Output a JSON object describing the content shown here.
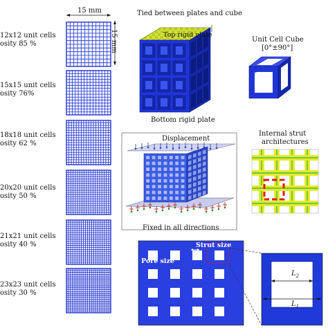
{
  "dimension_width": "15 mm",
  "dimension_height": "15 mm",
  "samples": [
    {
      "cells": "12x12 unit cells",
      "porosity": "osity 85 %",
      "n": 12
    },
    {
      "cells": "15x15 unit cells",
      "porosity": "osity 76%",
      "n": 15
    },
    {
      "cells": "18x18 unit cells",
      "porosity": "osity 62 %",
      "n": 18
    },
    {
      "cells": "20x20 unit cells",
      "porosity": "osity 50 %",
      "n": 20
    },
    {
      "cells": "21x21 unit cells",
      "porosity": "osity 40 %",
      "n": 21
    },
    {
      "cells": "23x23 unit cells",
      "porosity": "osity 30 %",
      "n": 23
    }
  ],
  "cube": {
    "tied_label": "Tied between plates and cube",
    "top_plate_label": "Top rigid plate",
    "bottom_plate_label": "Bottom rigid plate"
  },
  "unit_cell": {
    "title": "Unit Cell Cube",
    "angle": "[0°±90°]"
  },
  "internal": {
    "title_line1": "Internal strut",
    "title_line2": "architectures"
  },
  "fem": {
    "displacement_label": "Displacement",
    "fixed_label": "Fixed in all directions"
  },
  "section": {
    "strut_label": "Strut size",
    "pore_label": "Pore size",
    "l2_label": "L",
    "l2_sub": "2",
    "l1_label": "L",
    "l1_sub": "1"
  },
  "colors": {
    "lattice_blue": "#2233cc",
    "solid_blue": "#1f3ad8",
    "plate_yellow": "#c8d62a",
    "strut_yellow": "#e3ea2c",
    "strut_green": "#44bb44",
    "highlight_red": "#e01b1b",
    "fixed_red": "#d42020"
  }
}
